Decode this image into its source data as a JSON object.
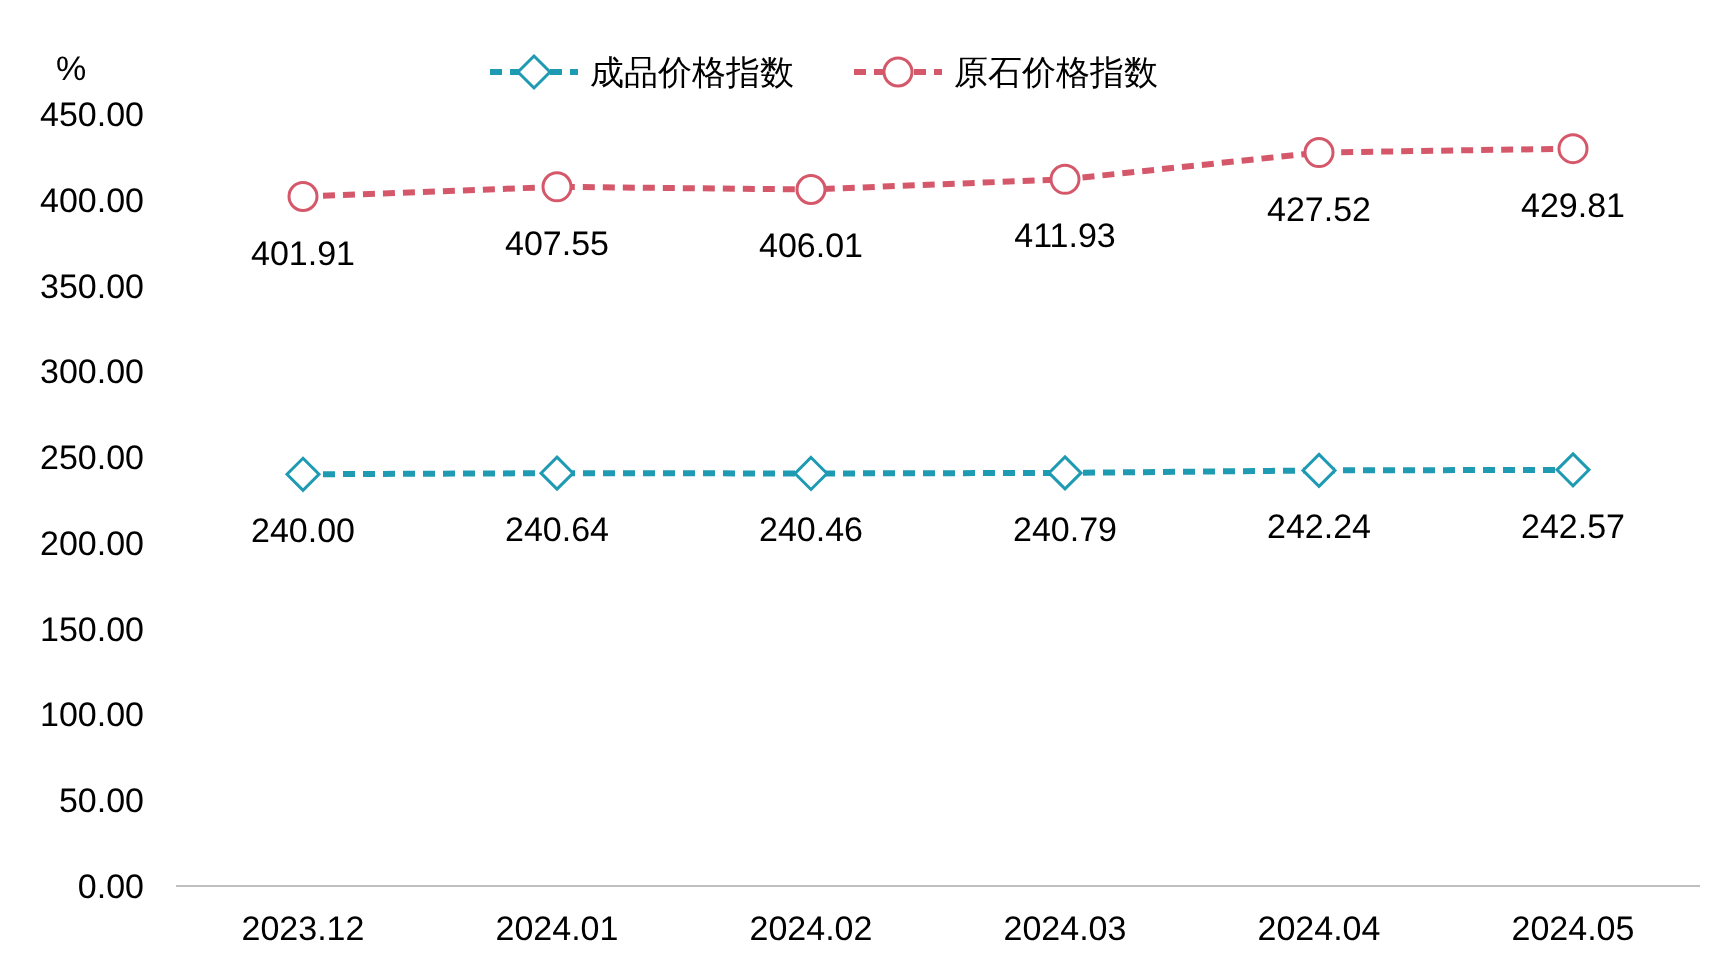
{
  "chart_data": {
    "type": "line",
    "ylabel": "%",
    "categories": [
      "2023.12",
      "2024.01",
      "2024.02",
      "2024.03",
      "2024.04",
      "2024.05"
    ],
    "series": [
      {
        "name": "成品价格指数",
        "color": "#1e9bb3",
        "marker": "diamond",
        "values": [
          240.0,
          240.64,
          240.46,
          240.79,
          242.24,
          242.57
        ],
        "value_labels": [
          "240.00",
          "240.64",
          "240.46",
          "240.79",
          "242.24",
          "242.57"
        ]
      },
      {
        "name": "原石价格指数",
        "color": "#d5586a",
        "marker": "circle",
        "values": [
          401.91,
          407.55,
          406.01,
          411.93,
          427.52,
          429.81
        ],
        "value_labels": [
          "401.91",
          "407.55",
          "406.01",
          "411.93",
          "427.52",
          "429.81"
        ]
      }
    ],
    "ylim": [
      0,
      450
    ],
    "yticks": [
      {
        "value": 0,
        "label": "0.00"
      },
      {
        "value": 50,
        "label": "50.00"
      },
      {
        "value": 100,
        "label": "100.00"
      },
      {
        "value": 150,
        "label": "150.00"
      },
      {
        "value": 200,
        "label": "200.00"
      },
      {
        "value": 250,
        "label": "250.00"
      },
      {
        "value": 300,
        "label": "300.00"
      },
      {
        "value": 350,
        "label": "350.00"
      },
      {
        "value": 400,
        "label": "400.00"
      },
      {
        "value": 450,
        "label": "450.00"
      }
    ],
    "grid": false,
    "legend": "top",
    "line_style": "dashed"
  }
}
